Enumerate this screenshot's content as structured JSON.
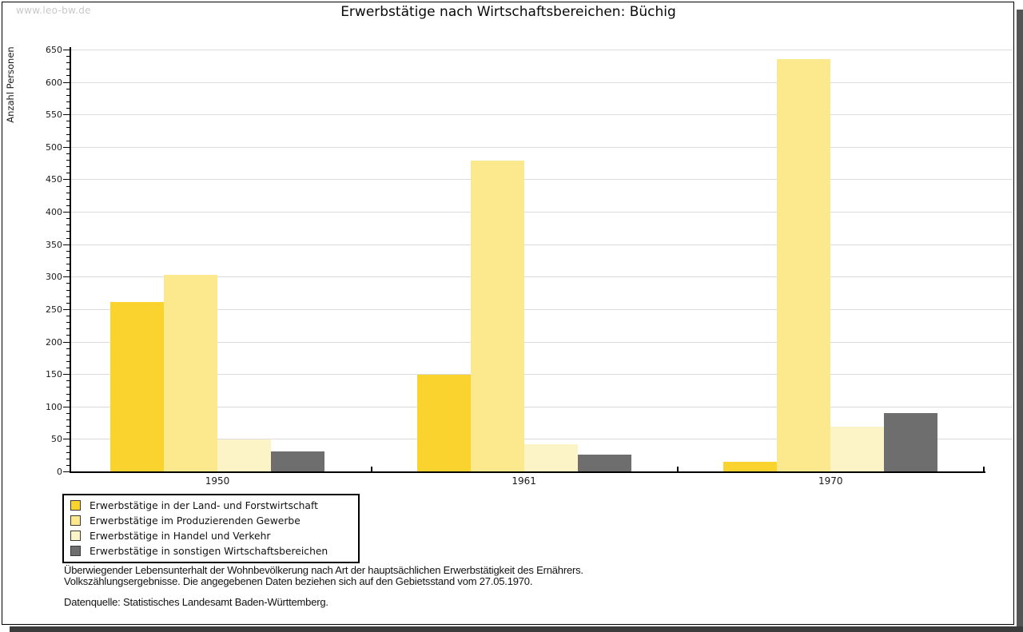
{
  "page": {
    "watermark": "www.leo-bw.de",
    "title": "Erwerbstätige nach Wirtschaftsbereichen: Büchig"
  },
  "chart_data": {
    "type": "bar",
    "title": "Erwerbstätige nach Wirtschaftsbereichen: Büchig",
    "xlabel": "",
    "ylabel": "Anzahl Personen",
    "categories": [
      "1950",
      "1961",
      "1970"
    ],
    "series": [
      {
        "name": "Erwerbstätige in der Land- und Forstwirtschaft",
        "color": "#fbd32f",
        "values": [
          262,
          150,
          16
        ]
      },
      {
        "name": "Erwerbstätige im Produzierenden Gewerbe",
        "color": "#fde98d",
        "values": [
          303,
          480,
          636
        ]
      },
      {
        "name": "Erwerbstätige in Handel und Verkehr",
        "color": "#fcf3c6",
        "values": [
          50,
          43,
          69
        ]
      },
      {
        "name": "Erwerbstätige in sonstigen Wirtschaftsbereichen",
        "color": "#6e6e6e",
        "values": [
          31,
          26,
          91
        ]
      }
    ],
    "ylim": [
      0,
      650
    ],
    "yticks": [
      0,
      50,
      100,
      150,
      200,
      250,
      300,
      350,
      400,
      450,
      500,
      550,
      600,
      650
    ],
    "minor_tick_step": 10,
    "grid": true,
    "legend_position": "bottom-left"
  },
  "footnotes": {
    "line1": "Überwiegender Lebensunterhalt der Wohnbevölkerung nach Art der hauptsächlichen Erwerbstätigkeit des Ernährers.",
    "line2": "Volkszählungsergebnisse. Die angegebenen Daten beziehen sich auf den Gebietsstand vom 27.05.1970.",
    "source": "Datenquelle: Statistisches Landesamt Baden-Württemberg."
  }
}
